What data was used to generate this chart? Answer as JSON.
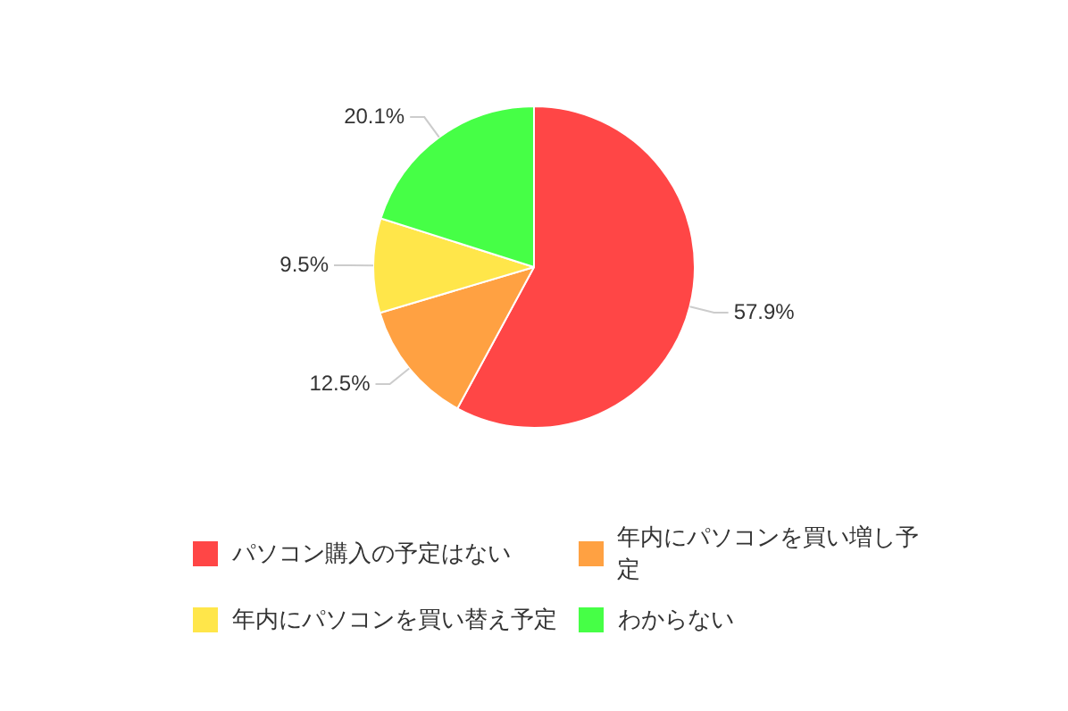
{
  "chart_data": {
    "type": "pie",
    "categories": [
      "パソコン購入の予定はない",
      "年内にパソコンを買い増し予定",
      "年内にパソコンを買い替え予定",
      "わからない"
    ],
    "values": [
      57.9,
      12.5,
      9.5,
      20.1
    ],
    "colors": [
      "#ff4646",
      "#ffa142",
      "#ffe64a",
      "#46ff46"
    ],
    "value_labels": [
      "57.9%",
      "12.5%",
      "9.5%",
      "20.1%"
    ],
    "legend": "bottom"
  }
}
